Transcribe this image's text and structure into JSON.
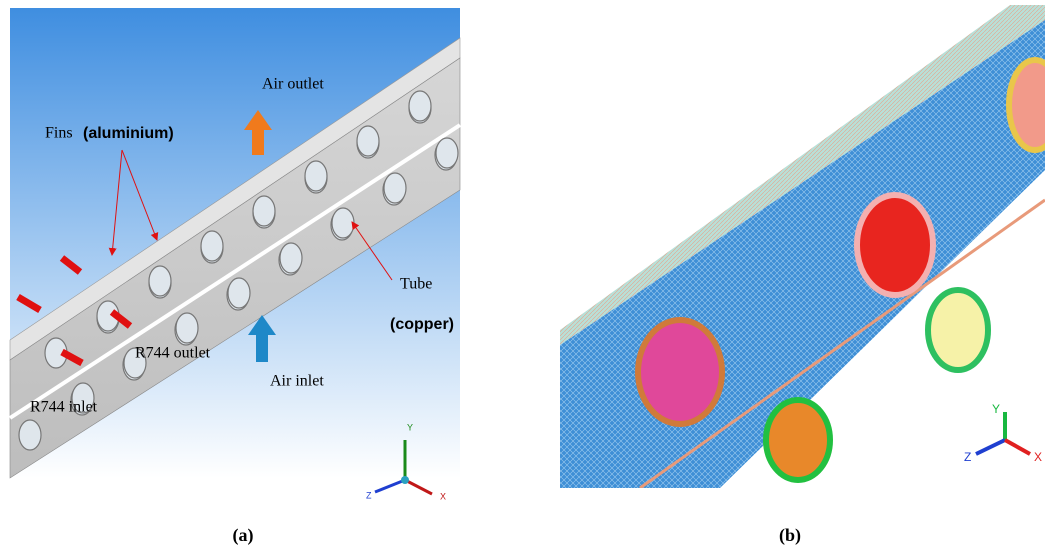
{
  "panels": [
    {
      "caption": "(a)",
      "labels": {
        "air_outlet": "Air outlet",
        "fins": "Fins",
        "fins_material": "(aluminium)",
        "tube": "Tube",
        "tube_material": "(copper)",
        "r744_outlet": "R744  outlet",
        "air_inlet": "Air inlet",
        "r744_inlet": "R744 inlet"
      },
      "axes": {
        "y": "Y",
        "z": "Z",
        "x": "X"
      }
    },
    {
      "caption": "(b)",
      "axes": {
        "y": "Y",
        "z": "Z",
        "x": "X"
      }
    }
  ]
}
